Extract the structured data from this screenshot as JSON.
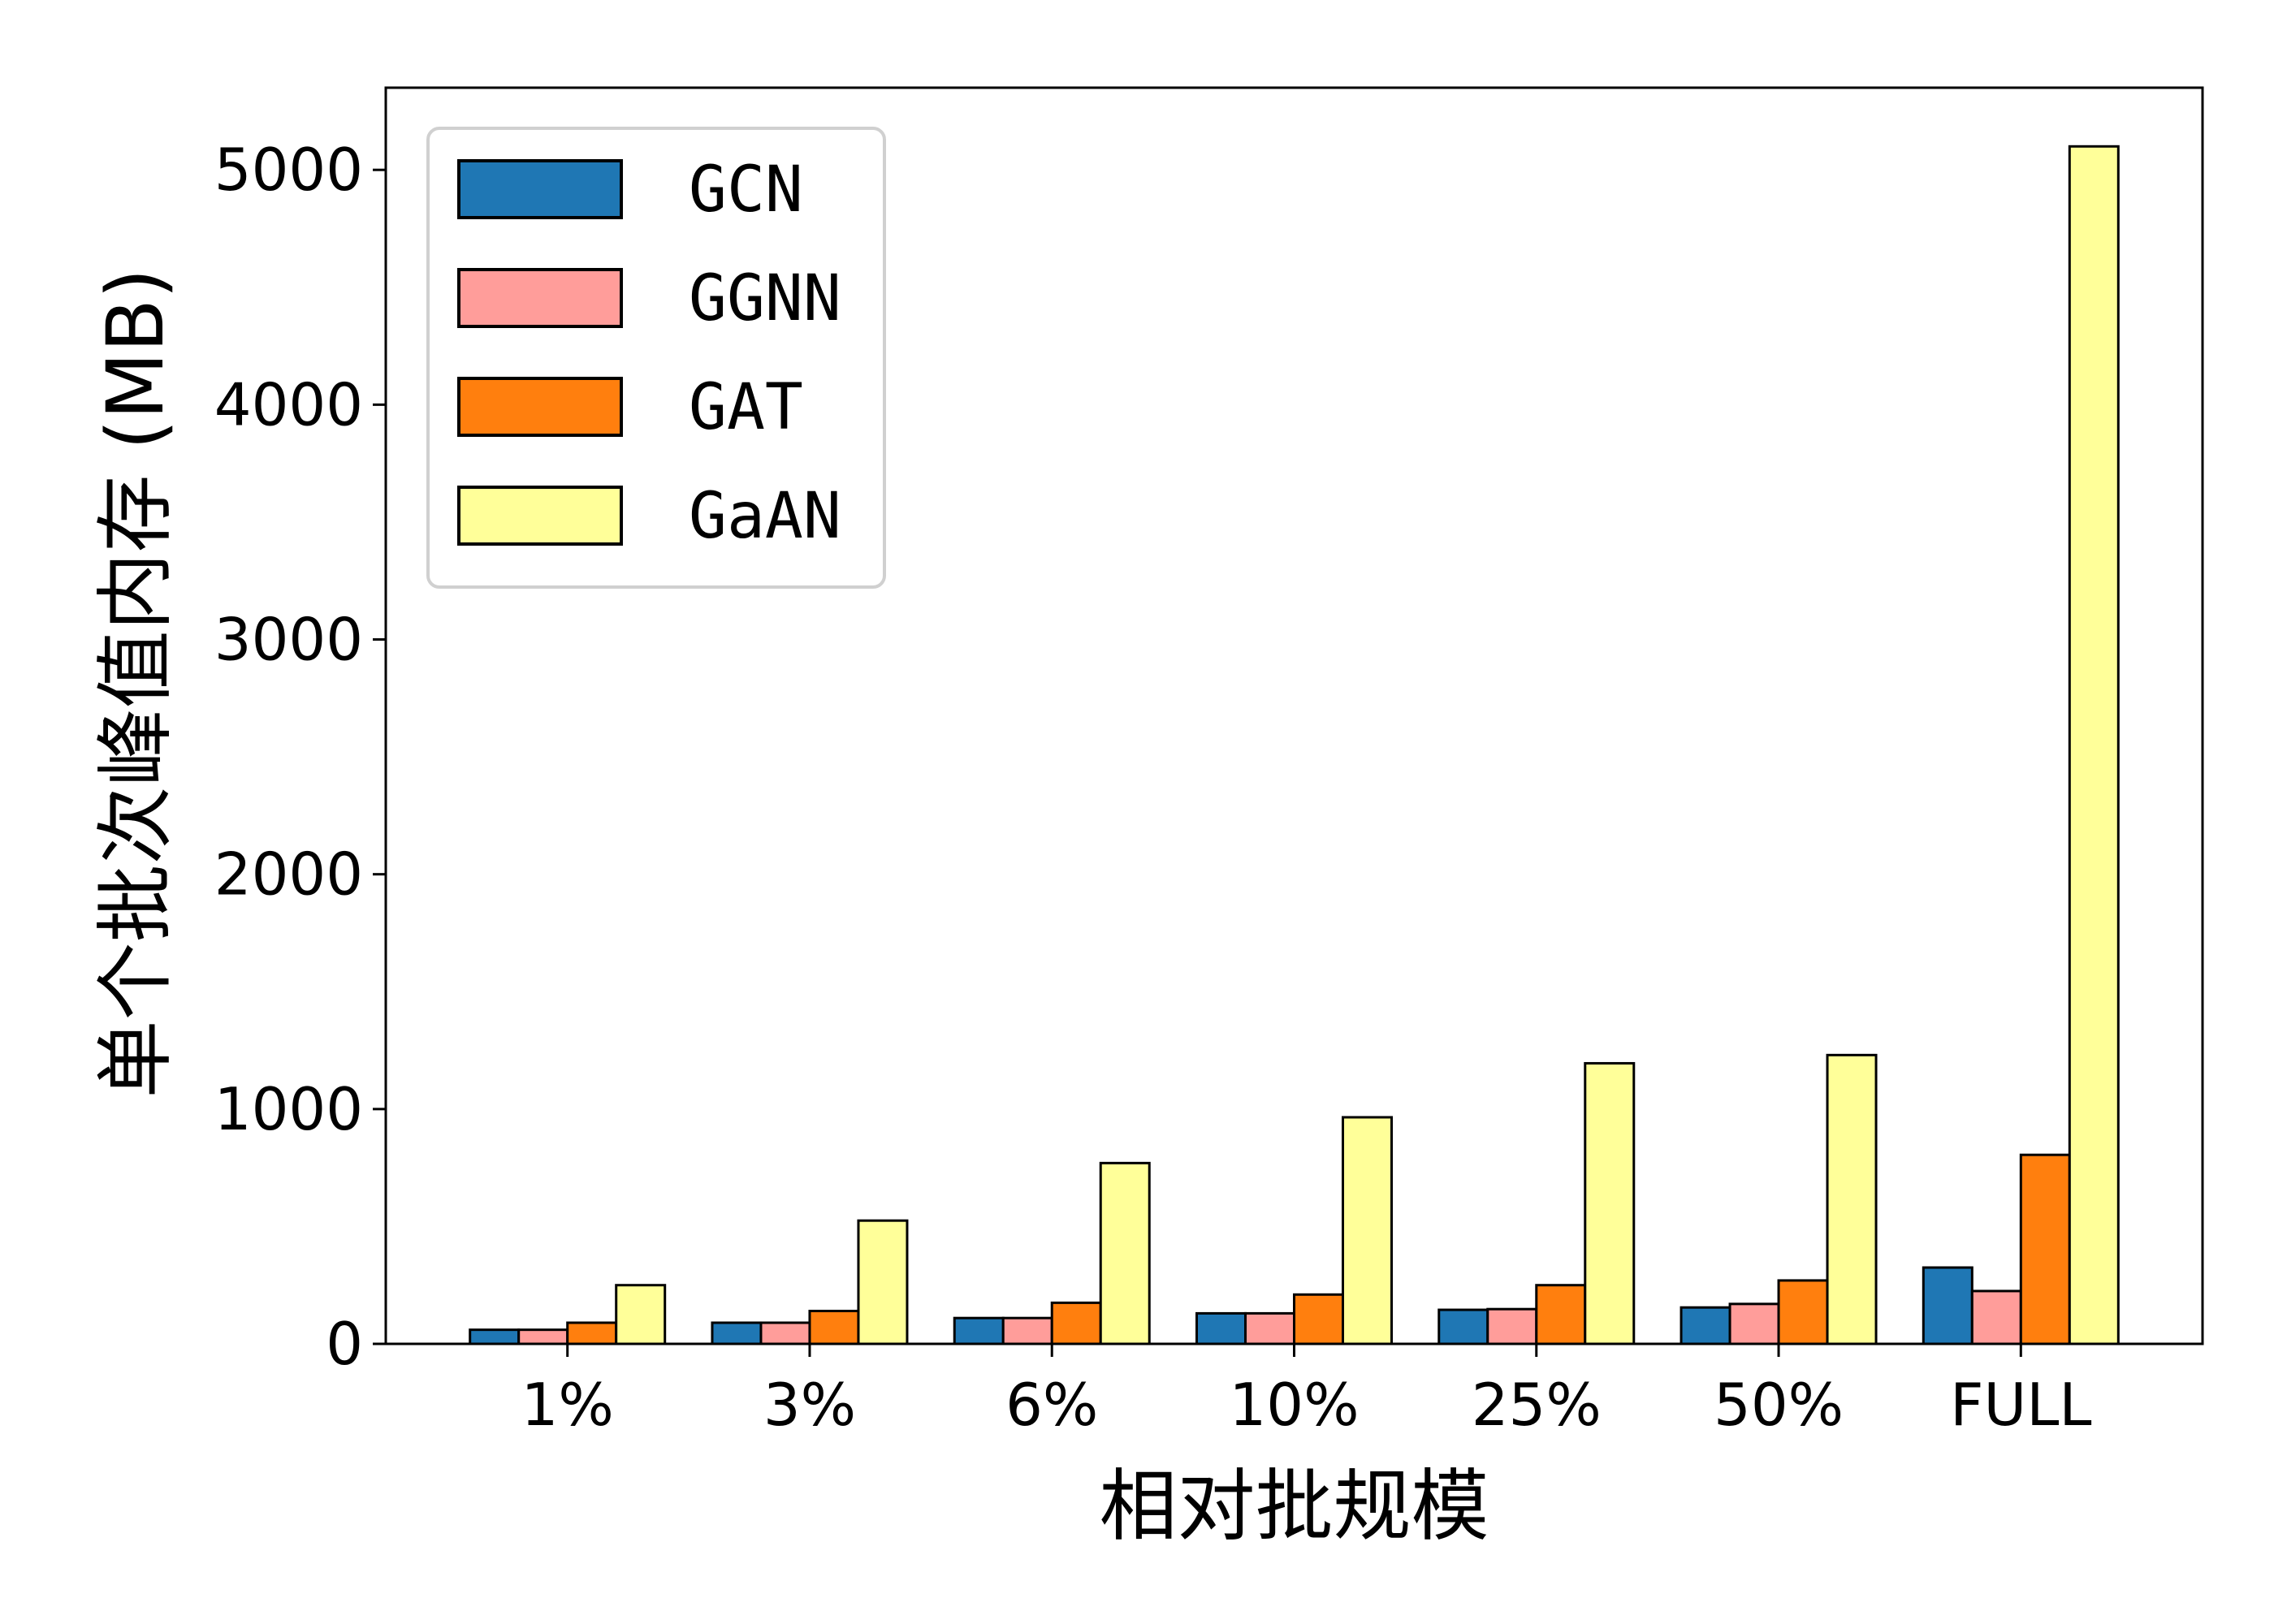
{
  "chart_data": {
    "type": "bar",
    "title": "",
    "xlabel": "相对批规模",
    "ylabel": "单个批次峰值内存 (MB)",
    "categories": [
      "1%",
      "3%",
      "6%",
      "10%",
      "25%",
      "50%",
      "FULL"
    ],
    "ylim": [
      0,
      5350
    ],
    "yticks": [
      0,
      1000,
      2000,
      3000,
      4000,
      5000
    ],
    "ytick_labels": [
      "0",
      "1000",
      "2000",
      "3000",
      "4000",
      "5000"
    ],
    "grid": false,
    "legend_position": "top-left",
    "series": [
      {
        "name": "GCN",
        "color": "#1f77b4",
        "values": [
          60,
          90,
          110,
          130,
          145,
          155,
          325
        ]
      },
      {
        "name": "GGNN",
        "color": "#ff9d9a",
        "values": [
          60,
          90,
          110,
          130,
          148,
          170,
          225
        ]
      },
      {
        "name": "GAT",
        "color": "#ff7f0e",
        "values": [
          90,
          140,
          175,
          210,
          250,
          270,
          805
        ]
      },
      {
        "name": "GaAN",
        "color": "#ffff99",
        "values": [
          250,
          525,
          770,
          965,
          1195,
          1230,
          5100
        ]
      }
    ]
  }
}
